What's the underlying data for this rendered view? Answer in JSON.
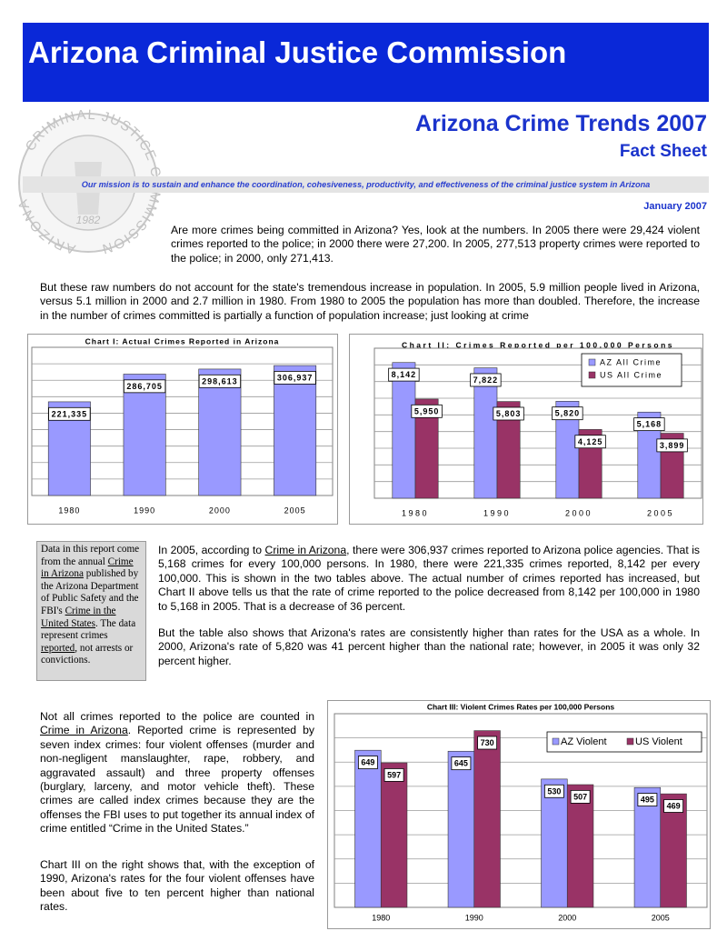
{
  "header": {
    "title": "Arizona Criminal Justice Commission"
  },
  "seal": {
    "text": "CRIMINAL JUSTICE COMMISSION",
    "state": "ARIZONA",
    "year": "1982"
  },
  "report": {
    "title": "Arizona Crime Trends 2007",
    "subtitle": "Fact Sheet",
    "mission": "Our mission is to sustain and enhance the coordination, cohesiveness, productivity, and effectiveness of the criminal justice system in Arizona",
    "date": "January 2007"
  },
  "text": {
    "p1": "Are more crimes being committed in Arizona?  Yes, look at the numbers.  In 2005 there were 29,424 violent crimes reported to the police; in 2000 there were 27,200.  In 2005, 277,513 property crimes were reported to the police; in 2000, only 271,413.",
    "p2": "But these raw numbers do not account for the state's tremendous increase in population.  In 2005, 5.9 million people lived in Arizona, versus 5.1 million in 2000 and 2.7 million in 1980.  From 1980 to 2005 the population has more than doubled. Therefore, the increase in the number of crimes committed is partially a function of population increase; just looking at crime",
    "sidebar": [
      "Data in this report come from the annual ",
      "Crime in Arizona",
      " published by the Arizona Department of Public Safety and the FBI's ",
      "Crime in the United States",
      ". The data represent crimes ",
      "reported",
      ", not arrests or convictions."
    ],
    "p3": [
      "In 2005, according to ",
      "Crime in Arizona",
      ", there were 306,937 crimes reported to Arizona police agencies.  That is 5,168 crimes for every 100,000 persons.  In 1980, there were 221,335 crimes reported, 8,142 per every 100,000.  This is shown in the two tables above.  The actual number of crimes reported has increased, but Chart II above tells us that the rate of crime reported to the police decreased from 8,142 per 100,000 in 1980 to 5,168 in 2005.  That is a decrease of 36 percent."
    ],
    "p4": "But the table also shows that Arizona's rates are consistently higher than rates for the USA as a whole.  In 2000, Arizona's rate of 5,820 was 41 percent higher than the national rate; however, in 2005 it was only 32 percent higher.",
    "p5": [
      "Not all crimes reported to the police are counted in ",
      "Crime in Arizona",
      ".  Reported crime is represented by seven index crimes:  four violent offenses (murder and non-negligent manslaughter, rape, robbery, and aggravated assault) and three property offenses (burglary, larceny, and motor vehicle theft).  These crimes are called index crimes because they are the offenses the FBI uses to put together its annual index of crime entitled “Crime in the United States.”"
    ],
    "p6": "Chart III on the right shows that, with the exception of 1990, Arizona's rates for the four violent offenses have been about five to ten percent higher than national rates."
  },
  "chart_data": [
    {
      "type": "bar",
      "title": "Chart I:  Actual Crimes Reported in Arizona",
      "categories": [
        "1980",
        "1990",
        "2000",
        "2005"
      ],
      "values": [
        221335,
        286705,
        298613,
        306937
      ],
      "value_labels": [
        "221,335",
        "286,705",
        "298,613",
        "306,937"
      ],
      "color": "#9999ff",
      "ylim": [
        0,
        350000
      ],
      "grid": true
    },
    {
      "type": "bar",
      "title": "Chart II:  Crimes Reported per 100,000 Persons",
      "categories": [
        "1980",
        "1990",
        "2000",
        "2005"
      ],
      "series": [
        {
          "name": "AZ All Crime",
          "color": "#9999ff",
          "values": [
            8142,
            7822,
            5820,
            5168
          ],
          "value_labels": [
            "8,142",
            "7,822",
            "5,820",
            "5,168"
          ]
        },
        {
          "name": "US All Crime",
          "color": "#993366",
          "values": [
            5950,
            5803,
            4125,
            3899
          ],
          "value_labels": [
            "5,950",
            "5,803",
            "4,125",
            "3,899"
          ]
        }
      ],
      "ylim": [
        0,
        9000
      ],
      "grid": true,
      "legend": "top-right"
    },
    {
      "type": "bar",
      "title": "Chart III: Violent Crimes Rates per 100,000 Persons",
      "categories": [
        "1980",
        "1990",
        "2000",
        "2005"
      ],
      "series": [
        {
          "name": "AZ Violent",
          "color": "#9999ff",
          "values": [
            649,
            645,
            530,
            495
          ]
        },
        {
          "name": "US Violent",
          "color": "#993366",
          "values": [
            597,
            730,
            507,
            469
          ]
        }
      ],
      "ylim": [
        0,
        800
      ],
      "grid": true,
      "legend": "top-right"
    }
  ]
}
